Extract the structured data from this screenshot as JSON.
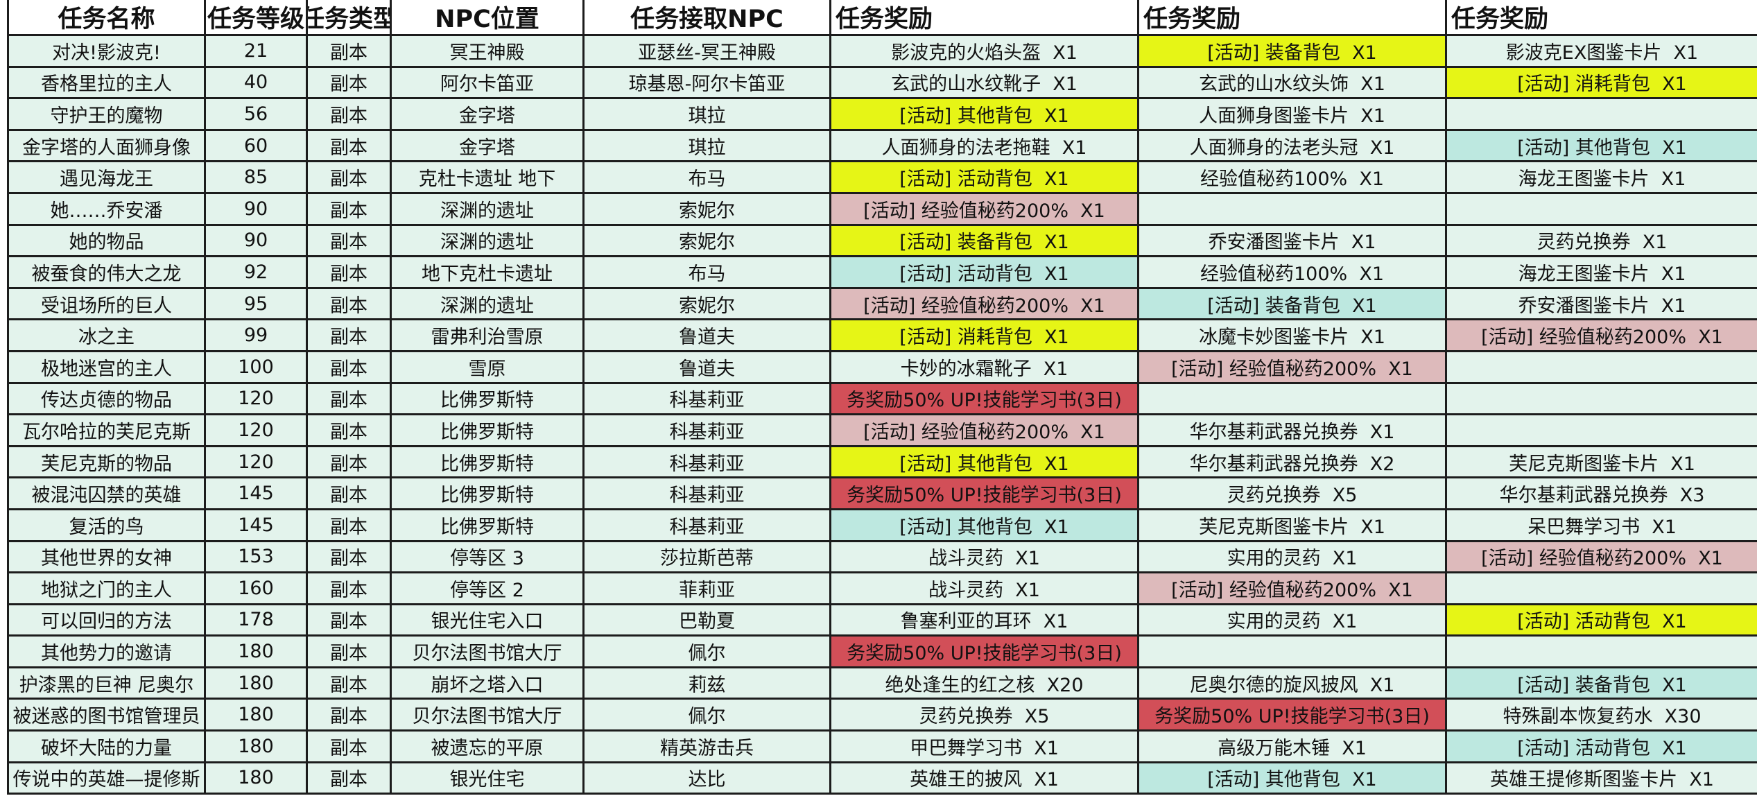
{
  "table": {
    "header": [
      "任务名称",
      "任务等级",
      "任务类型",
      "NPC位置",
      "任务接取NPC",
      "任务奖励",
      "任务奖励",
      "任务奖励"
    ],
    "rows": [
      [
        "对决!影波克!",
        21,
        "副本",
        "冥王神殿",
        "亚瑟丝-冥王神殿",
        "影波克的火焰头盔  X1",
        {
          "text": "[活动] 装备背包  X1",
          "color": "#e6f516"
        },
        "影波克EX图鉴卡片  X1"
      ],
      [
        "香格里拉的主人",
        40,
        "副本",
        "阿尔卡笛亚",
        "琼基恩-阿尔卡笛亚",
        "玄武的山水纹靴子  X1",
        "玄武的山水纹头饰  X1",
        {
          "text": "[活动] 消耗背包  X1",
          "color": "#e6f516"
        }
      ],
      [
        "守护王的魔物",
        56,
        "副本",
        "金字塔",
        "琪拉",
        {
          "text": "[活动] 其他背包  X1",
          "color": "#e6f516"
        },
        "人面狮身图鉴卡片  X1",
        null
      ],
      [
        "金字塔的人面狮身像",
        60,
        "副本",
        "金字塔",
        "琪拉",
        "人面狮身的法老拖鞋  X1",
        "人面狮身的法老头冠  X1",
        {
          "text": "[活动] 其他背包  X1",
          "color": "#bde8e0"
        }
      ],
      [
        "遇见海龙王",
        85,
        "副本",
        "克杜卡遗址 地下",
        "布马",
        {
          "text": "[活动] 活动背包  X1",
          "color": "#e6f516"
        },
        "经验值秘药100%  X1",
        "海龙王图鉴卡片  X1"
      ],
      [
        "她……乔安潘",
        90,
        "副本",
        "深渊的遗址",
        "索妮尔",
        {
          "text": "[活动] 经验值秘药200%  X1",
          "color": "#ddbabb"
        },
        null,
        null
      ],
      [
        "她的物品",
        90,
        "副本",
        "深渊的遗址",
        "索妮尔",
        {
          "text": "[活动] 装备背包  X1",
          "color": "#e6f516"
        },
        "乔安潘图鉴卡片  X1",
        "灵药兑换券  X1"
      ],
      [
        "被蚕食的伟大之龙",
        92,
        "副本",
        "地下克杜卡遗址",
        "布马",
        {
          "text": "[活动] 活动背包  X1",
          "color": "#bde8e0"
        },
        "经验值秘药100%  X1",
        "海龙王图鉴卡片  X1"
      ],
      [
        "受诅场所的巨人",
        95,
        "副本",
        "深渊的遗址",
        "索妮尔",
        {
          "text": "[活动] 经验值秘药200%  X1",
          "color": "#ddbabb"
        },
        {
          "text": "[活动] 装备背包  X1",
          "color": "#bde8e0"
        },
        "乔安潘图鉴卡片  X1"
      ],
      [
        "冰之主",
        99,
        "副本",
        "雷弗利治雪原",
        "鲁道夫",
        {
          "text": "[活动] 消耗背包  X1",
          "color": "#e6f516"
        },
        "冰魔卡妙图鉴卡片  X1",
        {
          "text": "[活动] 经验值秘药200%  X1",
          "color": "#ddbabb"
        }
      ],
      [
        "极地迷宫的主人",
        100,
        "副本",
        "雪原",
        "鲁道夫",
        "卡妙的冰霜靴子  X1",
        {
          "text": "[活动] 经验值秘药200%  X1",
          "color": "#ddbabb"
        },
        null
      ],
      [
        "传达贞德的物品",
        120,
        "副本",
        "比佛罗斯特",
        "科基莉亚",
        {
          "text": "务奖励50% UP!技能学习书(3日)",
          "color": "#d24f58"
        },
        null,
        null
      ],
      [
        "瓦尔哈拉的芙尼克斯",
        120,
        "副本",
        "比佛罗斯特",
        "科基莉亚",
        {
          "text": "[活动] 经验值秘药200%  X1",
          "color": "#ddbabb"
        },
        "华尔基莉武器兑换券  X1",
        null
      ],
      [
        "芙尼克斯的物品",
        120,
        "副本",
        "比佛罗斯特",
        "科基莉亚",
        {
          "text": "[活动] 其他背包  X1",
          "color": "#e6f516"
        },
        "华尔基莉武器兑换券  X2",
        "芙尼克斯图鉴卡片  X1"
      ],
      [
        "被混沌囚禁的英雄",
        145,
        "副本",
        "比佛罗斯特",
        "科基莉亚",
        {
          "text": "务奖励50% UP!技能学习书(3日)",
          "color": "#d24f58"
        },
        "灵药兑换券  X5",
        "华尔基莉武器兑换券  X3"
      ],
      [
        "复活的鸟",
        145,
        "副本",
        "比佛罗斯特",
        "科基莉亚",
        {
          "text": "[活动] 其他背包  X1",
          "color": "#bde8e0"
        },
        "芙尼克斯图鉴卡片  X1",
        "呆巴舞学习书  X1"
      ],
      [
        "其他世界的女神",
        153,
        "副本",
        "停等区 3",
        "莎拉斯芭蒂",
        "战斗灵药  X1",
        "实用的灵药  X1",
        {
          "text": "[活动] 经验值秘药200%  X1",
          "color": "#ddbabb"
        }
      ],
      [
        "地狱之门的主人",
        160,
        "副本",
        "停等区 2",
        "菲莉亚",
        "战斗灵药  X1",
        {
          "text": "[活动] 经验值秘药200%  X1",
          "color": "#ddbabb"
        },
        null
      ],
      [
        "可以回归的方法",
        178,
        "副本",
        "银光住宅入口",
        "巴勒夏",
        "鲁塞利亚的耳环  X1",
        "实用的灵药  X1",
        {
          "text": "[活动] 活动背包  X1",
          "color": "#e6f516"
        }
      ],
      [
        "其他势力的邀请",
        180,
        "副本",
        "贝尔法图书馆大厅",
        "佩尔",
        {
          "text": "务奖励50% UP!技能学习书(3日)",
          "color": "#d24f58"
        },
        null,
        null
      ],
      [
        "护漆黑的巨神 尼奥尔",
        180,
        "副本",
        "崩坏之塔入口",
        "莉兹",
        "绝处逢生的红之核  X20",
        "尼奥尔德的旋风披风  X1",
        {
          "text": "[活动] 装备背包  X1",
          "color": "#bde8e0"
        }
      ],
      [
        "被迷惑的图书馆管理员",
        180,
        "副本",
        "贝尔法图书馆大厅",
        "佩尔",
        "灵药兑换券  X5",
        {
          "text": "务奖励50% UP!技能学习书(3日)",
          "color": "#d24f58"
        },
        "特殊副本恢复药水  X30"
      ],
      [
        "破坏大陆的力量",
        180,
        "副本",
        "被遗忘的平原",
        "精英游击兵",
        "甲巴舞学习书  X1",
        "高级万能木锤  X1",
        {
          "text": "[活动] 活动背包  X1",
          "color": "#bde8e0"
        }
      ],
      [
        "传说中的英雄—提修斯",
        180,
        "副本",
        "银光住宅",
        "达比",
        "英雄王的披风  X1",
        {
          "text": "[活动] 其他背包  X1",
          "color": "#bde8e0"
        },
        "英雄王提修斯图鉴卡片  X1"
      ]
    ]
  }
}
